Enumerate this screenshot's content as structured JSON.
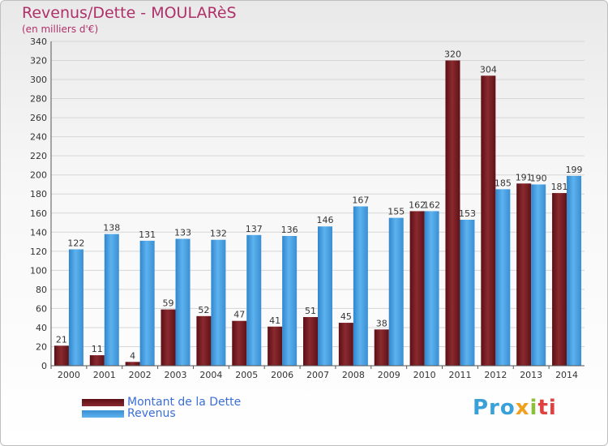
{
  "title": "Revenus/Dette - MOULARèS",
  "subtitle": "(en milliers d'€)",
  "colors": {
    "debt": "#7a1f24",
    "revenue": "#4fa6e6",
    "title": "#b0306a",
    "legend_text": "#3b6fd6"
  },
  "legend": {
    "debt_label": "Montant de la Dette",
    "revenue_label": "Revenus"
  },
  "logo": {
    "text": "Proxiti",
    "parts": [
      "Pro",
      "x",
      "i",
      "ti"
    ]
  },
  "chart_data": {
    "type": "bar",
    "title": "Revenus/Dette - MOULARèS",
    "subtitle": "(en milliers d'€)",
    "categories": [
      "2000",
      "2001",
      "2002",
      "2003",
      "2004",
      "2005",
      "2006",
      "2007",
      "2008",
      "2009",
      "2010",
      "2011",
      "2012",
      "2013",
      "2014"
    ],
    "series": [
      {
        "name": "Montant de la Dette",
        "values": [
          21,
          11,
          4,
          59,
          52,
          47,
          41,
          51,
          45,
          38,
          162,
          320,
          304,
          191,
          181
        ],
        "labels": [
          "21",
          "11",
          "4",
          "59",
          "52",
          "47",
          "41",
          "51",
          "45",
          "38",
          "162",
          "320",
          "304",
          "191",
          "181"
        ]
      },
      {
        "name": "Revenus",
        "values": [
          122,
          138,
          131,
          133,
          132,
          137,
          136,
          146,
          167,
          155,
          162,
          153,
          185,
          190,
          199
        ],
        "labels": [
          "122",
          "138",
          "131",
          "133",
          "132",
          "137",
          "136",
          "146",
          "167",
          "155",
          "162",
          "153",
          "185",
          "190",
          "199"
        ]
      }
    ],
    "ylim": [
      0,
      340
    ],
    "yticks": [
      0,
      20,
      40,
      60,
      80,
      100,
      120,
      140,
      160,
      180,
      200,
      220,
      240,
      260,
      280,
      300,
      320,
      340
    ],
    "grid": true,
    "legend_position": "bottom-left"
  }
}
